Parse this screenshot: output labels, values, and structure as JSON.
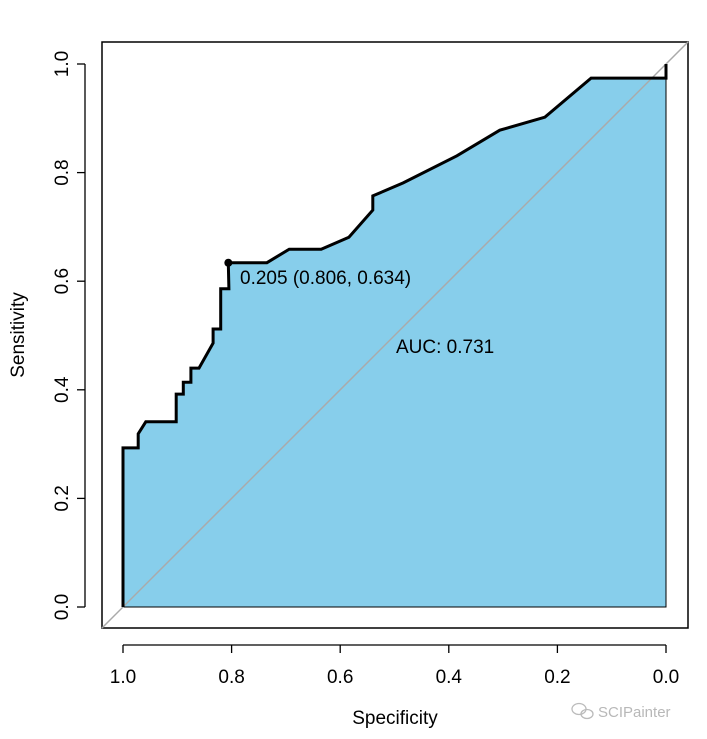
{
  "chart_data": {
    "type": "line",
    "title": "",
    "xlabel": "Specificity",
    "ylabel": "Sensitivity",
    "xlim": [
      1.0,
      0.0
    ],
    "ylim": [
      0.0,
      1.0
    ],
    "x_reversed": true,
    "grid": false,
    "xticks": [
      "1.0",
      "0.8",
      "0.6",
      "0.4",
      "0.2",
      "0.0"
    ],
    "xtick_values": [
      1.0,
      0.8,
      0.6,
      0.4,
      0.2,
      0.0
    ],
    "yticks": [
      "0.0",
      "0.2",
      "0.4",
      "0.6",
      "0.8",
      "1.0"
    ],
    "ytick_values": [
      0.0,
      0.2,
      0.4,
      0.6,
      0.8,
      1.0
    ],
    "fill_color": "#87CEEB",
    "line_color": "#000000",
    "diagonal_color": "#AAAAAA",
    "curve": {
      "specificity": [
        1.0,
        1.0,
        0.972,
        0.972,
        0.958,
        0.902,
        0.902,
        0.889,
        0.889,
        0.875,
        0.875,
        0.86,
        0.834,
        0.834,
        0.82,
        0.82,
        0.805,
        0.806,
        0.735,
        0.694,
        0.635,
        0.584,
        0.54,
        0.54,
        0.484,
        0.385,
        0.306,
        0.223,
        0.138,
        0.0,
        0.0
      ],
      "sensitivity": [
        0.0,
        0.293,
        0.293,
        0.319,
        0.341,
        0.341,
        0.392,
        0.392,
        0.414,
        0.414,
        0.44,
        0.44,
        0.486,
        0.512,
        0.512,
        0.586,
        0.586,
        0.634,
        0.634,
        0.659,
        0.659,
        0.681,
        0.731,
        0.757,
        0.781,
        0.831,
        0.878,
        0.902,
        0.974,
        0.974,
        1.0
      ]
    },
    "best_threshold": {
      "specificity": 0.806,
      "sensitivity": 0.634,
      "label": "0.205 (0.806, 0.634)"
    },
    "annotations": {
      "auc": "AUC: 0.731"
    }
  },
  "watermark": {
    "text": "SCIPainter",
    "icon": "wechat-icon"
  }
}
